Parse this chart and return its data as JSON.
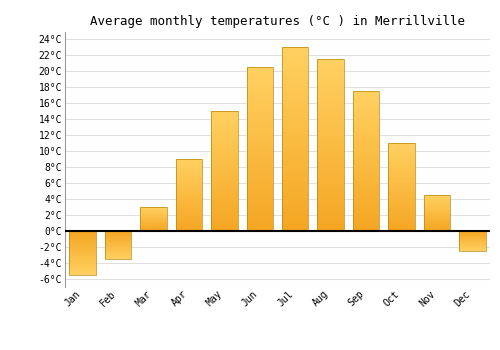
{
  "title": "Average monthly temperatures (°C ) in Merrillville",
  "months": [
    "Jan",
    "Feb",
    "Mar",
    "Apr",
    "May",
    "Jun",
    "Jul",
    "Aug",
    "Sep",
    "Oct",
    "Nov",
    "Dec"
  ],
  "values": [
    -5.5,
    -3.5,
    3.0,
    9.0,
    15.0,
    20.5,
    23.0,
    21.5,
    17.5,
    11.0,
    4.5,
    -2.5
  ],
  "bar_color_bottom": "#F5A623",
  "bar_color_top": "#FFD080",
  "edge_color": "#B8860B",
  "ylim": [
    -7,
    25
  ],
  "ytick_vals": [
    -6,
    -4,
    -2,
    0,
    2,
    4,
    6,
    8,
    10,
    12,
    14,
    16,
    18,
    20,
    22,
    24
  ],
  "ytick_labels": [
    "-6°C",
    "-4°C",
    "-2°C",
    "0°C",
    "2°C",
    "4°C",
    "6°C",
    "8°C",
    "10°C",
    "12°C",
    "14°C",
    "16°C",
    "18°C",
    "20°C",
    "22°C",
    "24°C"
  ],
  "bg_color": "#FFFFFF",
  "grid_color": "#E0E0E0",
  "zero_line_color": "#000000",
  "title_fontsize": 9,
  "tick_fontsize": 7,
  "font_family": "monospace"
}
